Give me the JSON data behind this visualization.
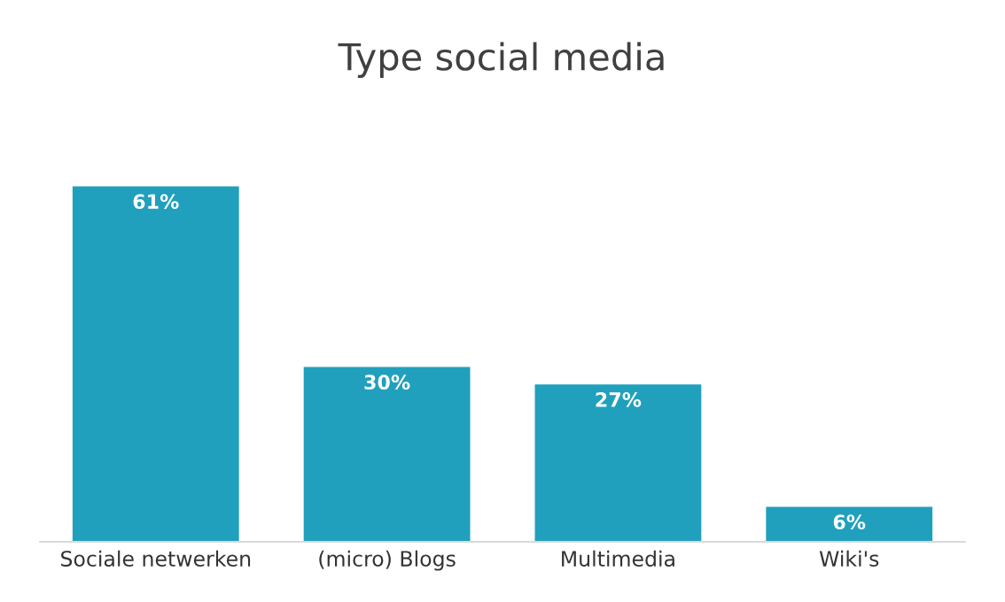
{
  "chart_data": {
    "type": "bar",
    "title": "Type social media",
    "categories": [
      "Sociale netwerken",
      "(micro) Blogs",
      "Multimedia",
      "Wiki's"
    ],
    "values": [
      61,
      30,
      27,
      6
    ],
    "value_labels": [
      "61%",
      "30%",
      "27%",
      "6%"
    ],
    "color": "#20a0bc"
  }
}
